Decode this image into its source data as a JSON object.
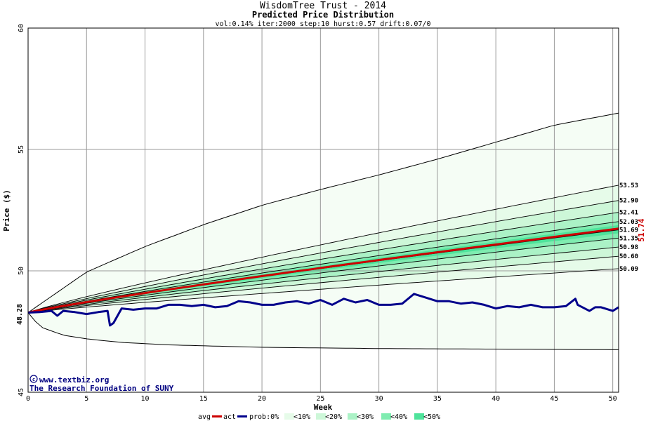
{
  "chart_data": {
    "type": "area",
    "title": "WisdomTree Trust - 2014",
    "subtitle": "Predicted Price Distribution",
    "params": "vol:0.14% iter:2000 step:10 hurst:0.57 drift:0.07/0",
    "xlabel": "Week",
    "ylabel": "Price ($)",
    "xlim": [
      0,
      50.5
    ],
    "ylim": [
      45,
      60
    ],
    "x_ticks": [
      "0",
      "5",
      "10",
      "15",
      "20",
      "25",
      "30",
      "35",
      "40",
      "45",
      "50"
    ],
    "y_ticks": [
      "45",
      "50",
      "55",
      "60"
    ],
    "grid": true,
    "start_value": "48.28",
    "start_price": 48.28,
    "end_avg_label": "51.74",
    "band_labels": [
      "53.53",
      "52.90",
      "52.41",
      "52.03",
      "51.69",
      "51.35",
      "50.98",
      "50.60",
      "50.09"
    ],
    "outer_upper": {
      "x": [
        0,
        5,
        10,
        15,
        20,
        25,
        30,
        35,
        40,
        45,
        50.5
      ],
      "y": [
        48.28,
        49.95,
        51.0,
        51.9,
        52.7,
        53.35,
        53.95,
        54.6,
        55.3,
        56.0,
        56.5
      ]
    },
    "outer_lower": {
      "x": [
        0,
        1,
        3,
        5,
        8,
        12,
        20,
        30,
        50.5
      ],
      "y": [
        48.28,
        47.7,
        47.35,
        47.2,
        47.05,
        46.95,
        46.85,
        46.8,
        46.75
      ]
    },
    "bands": [
      {
        "prob": "10",
        "upper": 53.53,
        "lower": 50.09
      },
      {
        "prob": "20",
        "upper": 52.9,
        "lower": 50.6
      },
      {
        "prob": "30",
        "upper": 52.41,
        "lower": 50.98
      },
      {
        "prob": "40",
        "upper": 52.03,
        "lower": 51.35
      }
    ],
    "band_curve_exponent": 0.9,
    "avg_end": 51.74,
    "series": [
      {
        "name": "act",
        "color": "#00008b",
        "x": [
          0,
          1,
          2,
          2.5,
          3,
          4,
          5,
          6,
          6.8,
          7,
          7.3,
          8,
          9,
          10,
          11,
          12,
          13,
          14,
          15,
          16,
          17,
          18,
          19,
          20,
          21,
          22,
          23,
          24,
          25,
          26,
          27,
          28,
          29,
          30,
          31,
          32,
          33,
          34,
          35,
          36,
          37,
          38,
          39,
          40,
          41,
          42,
          43,
          44,
          45,
          46,
          46.8,
          47,
          48,
          48.5,
          49,
          50,
          50.5
        ],
        "y": [
          48.28,
          48.3,
          48.35,
          48.15,
          48.35,
          48.3,
          48.22,
          48.3,
          48.35,
          47.75,
          47.85,
          48.45,
          48.4,
          48.45,
          48.45,
          48.6,
          48.6,
          48.55,
          48.6,
          48.5,
          48.55,
          48.75,
          48.7,
          48.6,
          48.6,
          48.7,
          48.75,
          48.65,
          48.8,
          48.6,
          48.85,
          48.7,
          48.8,
          48.6,
          48.6,
          48.65,
          49.05,
          48.9,
          48.75,
          48.75,
          48.65,
          48.7,
          48.6,
          48.45,
          48.55,
          48.5,
          48.6,
          48.5,
          48.5,
          48.55,
          48.85,
          48.6,
          48.35,
          48.5,
          48.5,
          48.35,
          48.5
        ]
      }
    ],
    "legend": {
      "avg": "avg",
      "act": "act",
      "prob_items": [
        "prob:0%",
        "<10%",
        "<20%",
        "<30%",
        "<40%",
        "<50%"
      ]
    },
    "credit_line1": "www.textbiz.org",
    "credit_line2": "The Research Foundation of SUNY",
    "colors": {
      "avg": "#cc0000",
      "act": "#00008b",
      "prob0": "#f5fdf5",
      "prob10": "#e6fbe9",
      "prob20": "#cdf7d8",
      "prob30": "#abf2c6",
      "prob40": "#7fecb0",
      "prob50": "#4fe39b",
      "grid": "#999999",
      "credit": "#000080"
    }
  }
}
